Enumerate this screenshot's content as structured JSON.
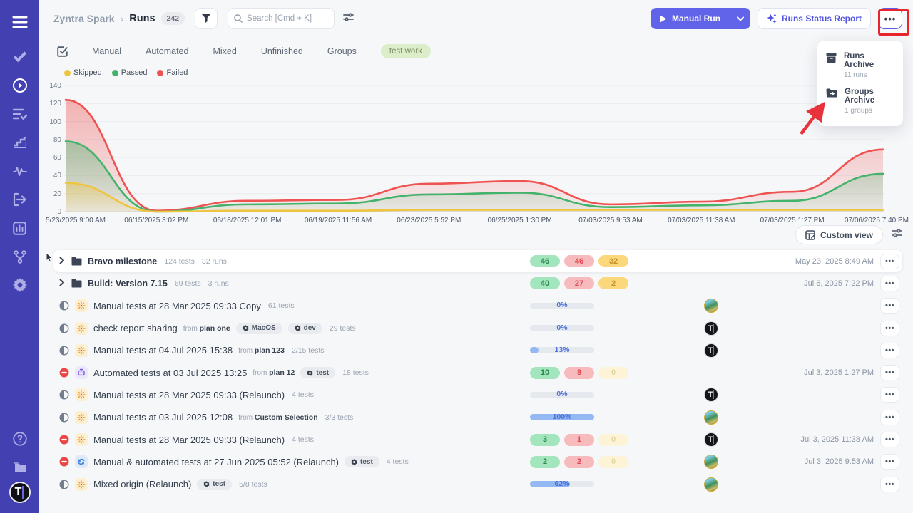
{
  "header": {
    "project": "Zyntra Spark",
    "separator": "›",
    "page": "Runs",
    "count": "242",
    "search_placeholder": "Search [Cmd + K]",
    "manual_run_label": "Manual Run",
    "report_label": "Runs Status Report",
    "more_label": "•••"
  },
  "dropdown": {
    "items": [
      {
        "icon": "archive-icon",
        "label": "Runs Archive",
        "sub": "11 runs"
      },
      {
        "icon": "folder-move-icon",
        "label": "Groups Archive",
        "sub": "1 groups"
      }
    ]
  },
  "tabs": [
    {
      "label": "Manual"
    },
    {
      "label": "Automated"
    },
    {
      "label": "Mixed"
    },
    {
      "label": "Unfinished"
    },
    {
      "label": "Groups"
    },
    {
      "label": "test work",
      "pill": true
    }
  ],
  "chart_data": {
    "type": "area",
    "stacked": true,
    "grid": true,
    "legend_position": "top-left",
    "ylim": [
      0,
      140
    ],
    "ytick_step": 20,
    "x": [
      "5/23/2025 9:00 AM",
      "06/15/2025 3:02 PM",
      "06/18/2025 12:01 PM",
      "06/19/2025 11:56 AM",
      "06/23/2025 5:52 PM",
      "06/25/2025 1:30 PM",
      "07/03/2025 9:53 AM",
      "07/03/2025 11:38 AM",
      "07/03/2025 1:27 PM",
      "07/06/2025 7:40 PM"
    ],
    "series": [
      {
        "name": "Skipped",
        "color": "#efc53f",
        "values": [
          32,
          0,
          1,
          1,
          2,
          2,
          2,
          2,
          2,
          2
        ]
      },
      {
        "name": "Passed",
        "color": "#43b26b",
        "values": [
          46,
          0,
          7,
          8,
          17,
          19,
          3,
          5,
          10,
          40
        ]
      },
      {
        "name": "Failed",
        "color": "#ee5351",
        "values": [
          46,
          1,
          4,
          4,
          12,
          13,
          3,
          4,
          10,
          27
        ]
      }
    ]
  },
  "toolbar": {
    "custom_view_label": "Custom view"
  },
  "table": {
    "rows": [
      {
        "type": "group",
        "hovered": true,
        "name": "Bravo milestone",
        "meta": [
          "124 tests",
          "32 runs"
        ],
        "badges": {
          "passed": 46,
          "failed": 46,
          "skipped": 32
        },
        "date": "May 23, 2025 8:49 AM"
      },
      {
        "type": "group",
        "name": "Build: Version 7.15",
        "meta": [
          "69 tests",
          "3 runs"
        ],
        "badges": {
          "passed": 40,
          "failed": 27,
          "skipped": 2
        },
        "date": "Jul 6, 2025 7:22 PM"
      },
      {
        "type": "run",
        "status": "pending",
        "kind": "manual",
        "title": "Manual tests at 28 Mar 2025 09:33 Copy",
        "tests": "61 tests",
        "progress": 0,
        "avatar": "photo"
      },
      {
        "type": "run",
        "status": "pending",
        "kind": "manual",
        "title": "check report sharing",
        "from": "plan one",
        "tags": [
          "MacOS",
          "dev"
        ],
        "tests": "29 tests",
        "progress": 0,
        "avatar": "logo"
      },
      {
        "type": "run",
        "status": "pending",
        "kind": "manual",
        "title": "Manual tests at 04 Jul 2025 15:38",
        "from": "plan 123",
        "tests": "2/15 tests",
        "progress": 13,
        "avatar": "logo"
      },
      {
        "type": "run",
        "status": "stopped",
        "kind": "automated",
        "title": "Automated tests at 03 Jul 2025 13:25",
        "from": "plan 12",
        "tags": [
          "test"
        ],
        "tests": "18 tests",
        "badges": {
          "passed": 10,
          "failed": 8,
          "skipped": 0
        },
        "date": "Jul 3, 2025 1:27 PM"
      },
      {
        "type": "run",
        "status": "pending",
        "kind": "manual",
        "title": "Manual tests at 28 Mar 2025 09:33 (Relaunch)",
        "tests": "4 tests",
        "progress": 0,
        "avatar": "logo"
      },
      {
        "type": "run",
        "status": "pending",
        "kind": "manual",
        "title": "Manual tests at 03 Jul 2025 12:08",
        "from": "Custom Selection",
        "tests": "3/3 tests",
        "progress": 100,
        "avatar": "photo"
      },
      {
        "type": "run",
        "status": "stopped",
        "kind": "manual",
        "title": "Manual tests at 28 Mar 2025 09:33 (Relaunch)",
        "tests": "4 tests",
        "badges": {
          "passed": 3,
          "failed": 1,
          "skipped": 0
        },
        "avatar": "logo",
        "date": "Jul 3, 2025 11:38 AM"
      },
      {
        "type": "run",
        "status": "stopped",
        "kind": "mixed",
        "title": "Manual & automated tests at 27 Jun 2025 05:52 (Relaunch)",
        "tags": [
          "test"
        ],
        "tests": "4 tests",
        "badges": {
          "passed": 2,
          "failed": 2,
          "skipped": 0
        },
        "avatar": "photo",
        "date": "Jul 3, 2025 9:53 AM"
      },
      {
        "type": "run",
        "status": "pending",
        "kind": "manual",
        "title": "Mixed origin (Relaunch)",
        "tags": [
          "test"
        ],
        "tests": "5/8 tests",
        "progress": 62,
        "avatar": "photo"
      }
    ]
  }
}
